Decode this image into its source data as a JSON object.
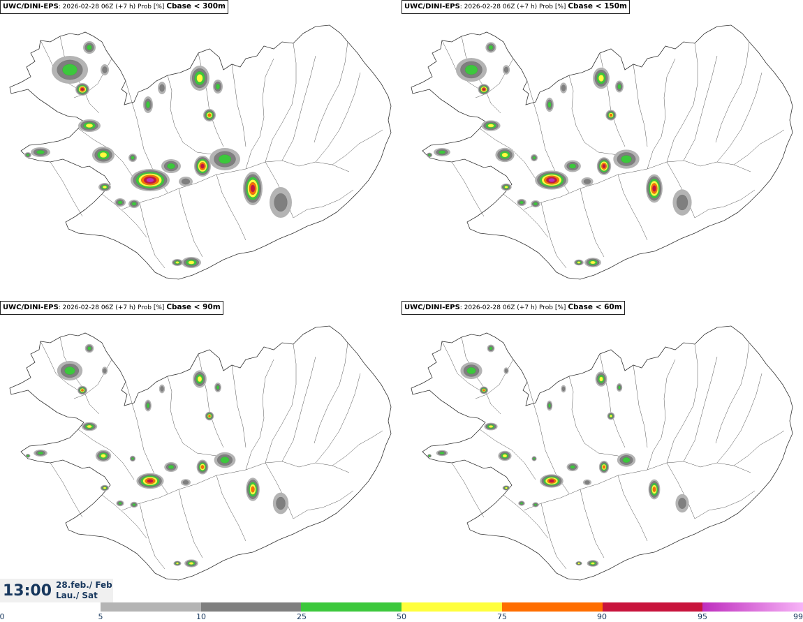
{
  "panels": [
    {
      "model": "UWC/DINI-EPS",
      "info": ": 2026-02-28 06Z (+7 h) Prob [%]",
      "threshold": "Cbase < 300m",
      "intensity": 1.0
    },
    {
      "model": "UWC/DINI-EPS",
      "info": ": 2026-02-28 06Z (+7 h) Prob [%]",
      "threshold": "Cbase < 150m",
      "intensity": 0.85
    },
    {
      "model": "UWC/DINI-EPS",
      "info": ": 2026-02-28 06Z (+7 h) Prob [%]",
      "threshold": "Cbase < 90m",
      "intensity": 0.7
    },
    {
      "model": "UWC/DINI-EPS",
      "info": ": 2026-02-28 06Z (+7 h) Prob [%]",
      "threshold": "Cbase < 60m",
      "intensity": 0.6
    }
  ],
  "valid_time": {
    "time": "13:00",
    "date_line1": "28.feb./ Feb",
    "date_line2": "Lau./ Sat"
  },
  "colorbar": {
    "ticks": [
      "0",
      "5",
      "10",
      "25",
      "50",
      "75",
      "90",
      "95",
      "99"
    ],
    "levels": [
      {
        "from": 5,
        "to": 10,
        "color": "#b4b4b4"
      },
      {
        "from": 10,
        "to": 25,
        "color": "#7f7f7f"
      },
      {
        "from": 25,
        "to": 50,
        "color": "#3cc83c"
      },
      {
        "from": 50,
        "to": 75,
        "color": "#ffff3c"
      },
      {
        "from": 75,
        "to": 90,
        "color": "#ff6e00"
      },
      {
        "from": 90,
        "to": 95,
        "color": "#c8143c"
      },
      {
        "from": 95,
        "to": 99,
        "color": "#be2dbe",
        "to_color": "#f7b4f7"
      }
    ]
  }
}
